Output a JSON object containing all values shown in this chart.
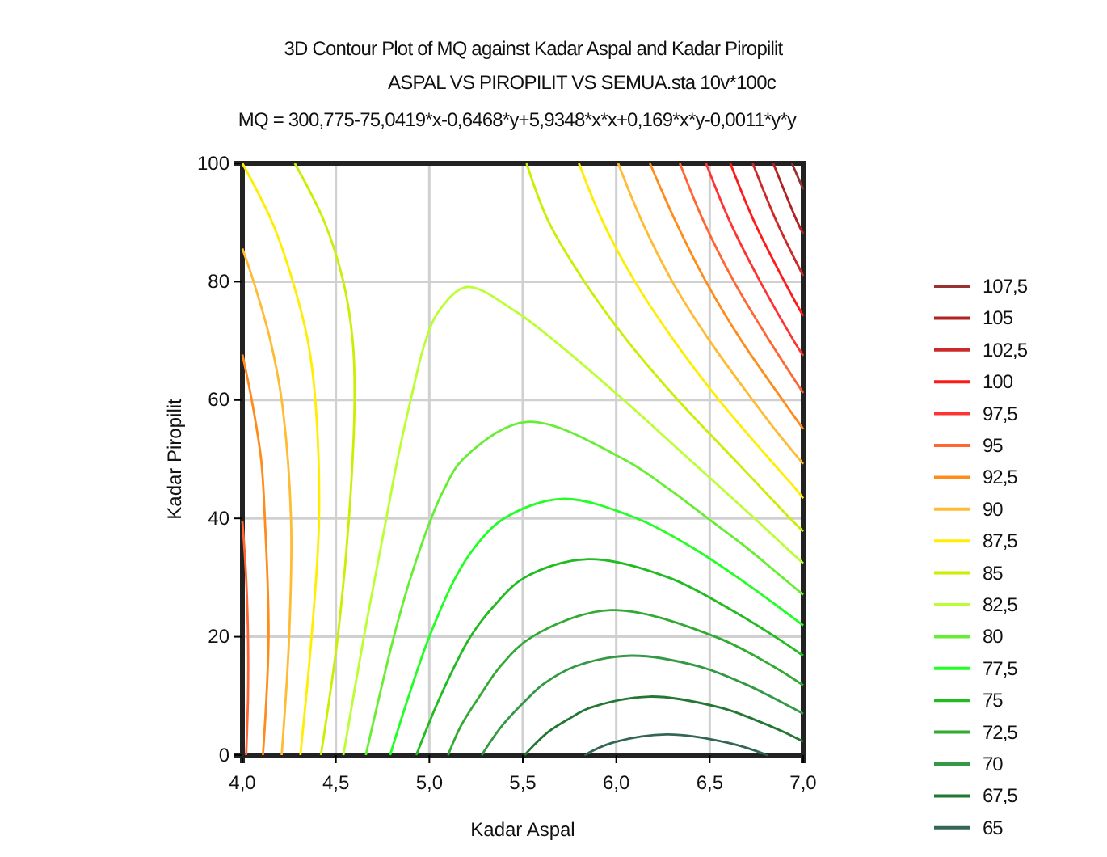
{
  "chart_data": {
    "type": "line",
    "title": "3D Contour Plot of MQ against Kadar Aspal and Kadar Piropilit",
    "subtitle": "ASPAL VS PIROPILIT VS SEMUA.sta 10v*100c",
    "annotations": [
      "MQ = 300,775-75,0419*x-0,6468*y+5,9348*x*x+0,169*x*y-0,0011*y*y"
    ],
    "xlabel": "Kadar Aspal",
    "ylabel": "Kadar Piropilit",
    "xlim": [
      4,
      7
    ],
    "ylim": [
      0,
      100
    ],
    "xticks": [
      {
        "value": 4,
        "label": "4,0"
      },
      {
        "value": 4.5,
        "label": "4,5"
      },
      {
        "value": 5,
        "label": "5,0"
      },
      {
        "value": 5.5,
        "label": "5,5"
      },
      {
        "value": 6,
        "label": "6,0"
      },
      {
        "value": 6.5,
        "label": "6,5"
      },
      {
        "value": 7,
        "label": "7,0"
      }
    ],
    "yticks": [
      0,
      20,
      40,
      60,
      80,
      100
    ],
    "grid": true,
    "legend": "right",
    "marker": "none",
    "line_style": "solid",
    "series": [
      {
        "name": "107,5",
        "color": "#993333",
        "x": [
          6.94,
          7.0
        ],
        "values": [
          100,
          95.6
        ]
      },
      {
        "name": "105",
        "color": "#b22222",
        "x": [
          6.84,
          6.97,
          7.0
        ],
        "values": [
          100,
          90,
          88.1
        ]
      },
      {
        "name": "102,5",
        "color": "#cc2a2a",
        "x": [
          6.73,
          6.86,
          7.0
        ],
        "values": [
          100,
          90,
          81.0
        ]
      },
      {
        "name": "100",
        "color": "#ff1a1a",
        "x": [
          6.61,
          6.74,
          6.9,
          7.0
        ],
        "values": [
          100,
          90,
          80,
          74.2
        ]
      },
      {
        "name": "97,5",
        "color": "#ff3333",
        "x": [
          6.48,
          6.61,
          6.77,
          6.95,
          7.0
        ],
        "values": [
          100,
          90,
          80,
          70,
          67.5
        ]
      },
      {
        "name": "95",
        "color": "#ff6633",
        "x": [
          4.02,
          4.03,
          4.03,
          4.02,
          4.0,
          null,
          6.34,
          6.47,
          6.63,
          6.82,
          7.0
        ],
        "values": [
          0,
          10,
          20,
          30,
          39.5,
          null,
          100,
          90,
          80,
          70,
          61.2
        ]
      },
      {
        "name": "92,5",
        "color": "#ff8c1a",
        "x": [
          4.11,
          4.14,
          4.12,
          4.1,
          4.05,
          4.0,
          null,
          6.18,
          6.32,
          6.48,
          6.67,
          6.89,
          7.0
        ],
        "values": [
          0,
          20,
          40,
          50,
          60,
          67.7,
          null,
          100,
          90,
          80,
          70,
          60,
          55.1
        ]
      },
      {
        "name": "90",
        "color": "#ffbb33",
        "x": [
          4.21,
          4.25,
          4.26,
          4.21,
          4.15,
          4.06,
          4.0,
          null,
          6.01,
          6.14,
          6.3,
          6.5,
          6.73,
          6.85,
          7.0
        ],
        "values": [
          0,
          20,
          40,
          60,
          70,
          80,
          85.6,
          null,
          100,
          90,
          80,
          70,
          60,
          55,
          49.2
        ]
      },
      {
        "name": "87,5",
        "color": "#ffee00",
        "x": [
          4.31,
          4.37,
          4.41,
          4.39,
          4.35,
          4.27,
          4.16,
          4.0,
          null,
          5.8,
          5.93,
          6.1,
          6.31,
          6.55,
          6.82,
          6.96,
          7.0
        ],
        "values": [
          0,
          20,
          40,
          60,
          70,
          80,
          90,
          100,
          null,
          100,
          90,
          80,
          70,
          60,
          50,
          45,
          43.4
        ]
      },
      {
        "name": "85",
        "color": "#ccee00",
        "x": [
          4.42,
          4.51,
          4.57,
          4.6,
          4.59,
          4.54,
          4.44,
          4.28,
          null,
          5.52,
          5.64,
          5.83,
          6.06,
          6.33,
          6.63,
          6.78,
          6.93,
          7.0
        ],
        "values": [
          0,
          20,
          40,
          60,
          70,
          80,
          90,
          100,
          null,
          100,
          90,
          80,
          70,
          60,
          50,
          45,
          40,
          37.8
        ]
      },
      {
        "name": "82,5",
        "color": "#bbff33",
        "x": [
          4.54,
          4.65,
          4.77,
          4.83,
          4.9,
          4.98,
          5.05,
          5.2,
          5.46,
          5.67,
          6.04,
          6.39,
          6.74,
          6.91,
          7.0
        ],
        "values": [
          0,
          20,
          40,
          50,
          60,
          70,
          75,
          79.1,
          75,
          70,
          60,
          50,
          40,
          35,
          32.4
        ]
      },
      {
        "name": "80",
        "color": "#66ee33",
        "x": [
          4.66,
          4.81,
          4.9,
          5.01,
          5.08,
          5.18,
          5.52,
          6.04,
          6.28,
          6.49,
          6.7,
          6.89,
          7.0
        ],
        "values": [
          0,
          20,
          30,
          40,
          45,
          50,
          56.3,
          50,
          45,
          40,
          35,
          30,
          27.1
        ]
      },
      {
        "name": "77,5",
        "color": "#22ff22",
        "x": [
          4.79,
          4.89,
          5.0,
          5.14,
          5.24,
          5.4,
          5.71,
          6.11,
          6.41,
          6.65,
          6.87,
          7.0
        ],
        "values": [
          0,
          10,
          20,
          30,
          35,
          40,
          43.3,
          40,
          35,
          30,
          25,
          21.9
        ]
      },
      {
        "name": "75",
        "color": "#22bb22",
        "x": [
          4.93,
          5.06,
          5.22,
          5.34,
          5.51,
          5.85,
          6.28,
          6.59,
          6.85,
          7.0
        ],
        "values": [
          0,
          10,
          20,
          25,
          30,
          33.1,
          30,
          25,
          20,
          16.8
        ]
      },
      {
        "name": "72,5",
        "color": "#33aa33",
        "x": [
          5.1,
          5.17,
          5.27,
          5.38,
          5.55,
          5.97,
          6.53,
          6.84,
          7.0
        ],
        "values": [
          0,
          5,
          10,
          15,
          20,
          24.5,
          20,
          15,
          11.8
        ]
      },
      {
        "name": "70",
        "color": "#339944",
        "x": [
          5.28,
          5.39,
          5.54,
          5.61,
          5.78,
          6.08,
          6.44,
          6.69,
          6.82,
          7.0
        ],
        "values": [
          0,
          5,
          10,
          12,
          15,
          16.8,
          15,
          12,
          10,
          7.0
        ]
      },
      {
        "name": "67,5",
        "color": "#227733",
        "x": [
          5.51,
          5.57,
          5.64,
          5.74,
          5.86,
          6.18,
          6.56,
          6.74,
          6.89,
          7.0
        ],
        "values": [
          0,
          2,
          4,
          6,
          8,
          9.9,
          8,
          6,
          4,
          2.3
        ]
      },
      {
        "name": "65",
        "color": "#336655",
        "x": [
          5.83,
          5.97,
          6.27,
          6.61,
          6.81
        ],
        "values": [
          0,
          2,
          3.5,
          2,
          0
        ]
      }
    ]
  }
}
